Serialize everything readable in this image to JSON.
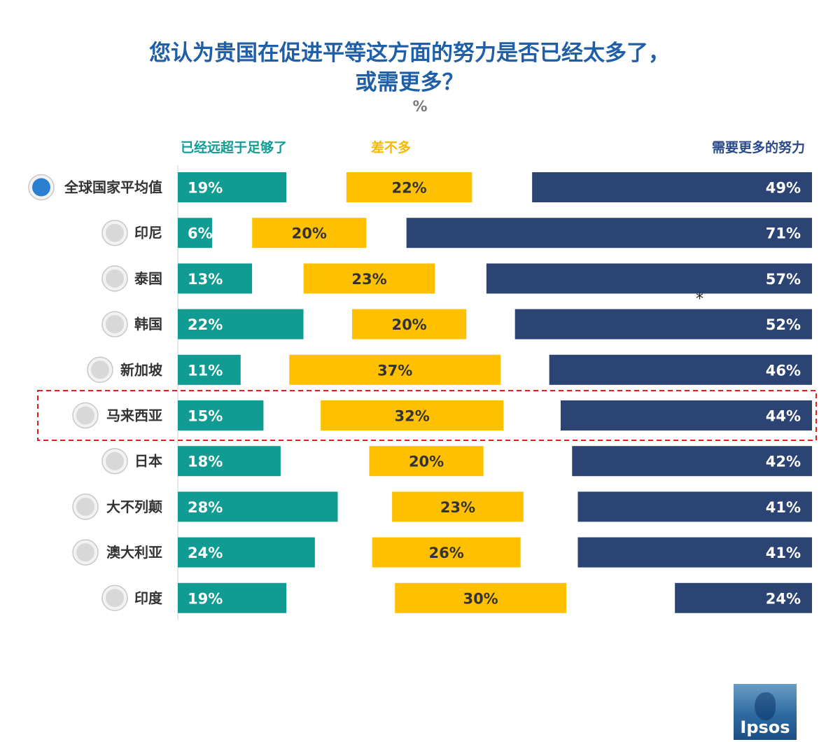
{
  "title_line1": "您认为贵国在促进平等这方面的努力是否已经太多了，",
  "title_line2": "或需更多？",
  "subtitle": "%",
  "legend": [
    "已经远超于足够了",
    "差不多",
    "需要更多的努力"
  ],
  "colors": {
    "too_much": "#109c93",
    "about_right": "#ffc000",
    "more_needed": "#2b4474",
    "label_text": "#333333",
    "highlight": "#e02020"
  },
  "annotation": "*",
  "watermark_text": "Ipsos",
  "chart_data": {
    "type": "bar",
    "stacked_layout": "diverging-three-segment",
    "categories": [
      "全球国家平均值",
      "印尼",
      "泰国",
      "韩国",
      "新加坡",
      "马来西亚",
      "日本",
      "大不列颠",
      "澳大利亚",
      "印度"
    ],
    "highlighted_category": "马来西亚",
    "series": [
      {
        "name": "已经远超于足够了",
        "values": [
          19,
          6,
          13,
          22,
          11,
          15,
          18,
          28,
          24,
          19
        ]
      },
      {
        "name": "差不多",
        "values": [
          22,
          20,
          23,
          20,
          37,
          32,
          20,
          23,
          26,
          30
        ]
      },
      {
        "name": "需要更多的努力",
        "values": [
          49,
          71,
          57,
          52,
          46,
          44,
          42,
          41,
          41,
          24
        ]
      }
    ],
    "value_suffix": "%",
    "xlabel": "",
    "ylabel": ""
  }
}
